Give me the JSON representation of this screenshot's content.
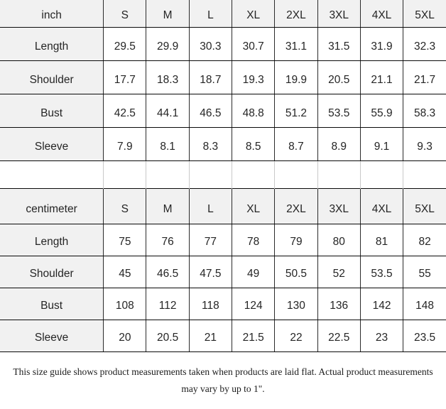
{
  "page": {
    "background": "#ffffff"
  },
  "colors": {
    "header_background": "#f1f1f1",
    "cell_background": "#ffffff",
    "vertical_grid_line": "#2b2b2b",
    "horizontal_grid_line": "#0a0a0a",
    "spacer_grid_line": "#c9c9c9",
    "text": "#252525"
  },
  "tables": [
    {
      "unit_label": "inch",
      "sizes": [
        "S",
        "M",
        "L",
        "XL",
        "2XL",
        "3XL",
        "4XL",
        "5XL"
      ],
      "rows": [
        {
          "label": "Length",
          "values": [
            "29.5",
            "29.9",
            "30.3",
            "30.7",
            "31.1",
            "31.5",
            "31.9",
            "32.3"
          ]
        },
        {
          "label": "Shoulder",
          "values": [
            "17.7",
            "18.3",
            "18.7",
            "19.3",
            "19.9",
            "20.5",
            "21.1",
            "21.7"
          ]
        },
        {
          "label": "Bust",
          "values": [
            "42.5",
            "44.1",
            "46.5",
            "48.8",
            "51.2",
            "53.5",
            "55.9",
            "58.3"
          ]
        },
        {
          "label": "Sleeve",
          "values": [
            "7.9",
            "8.1",
            "8.3",
            "8.5",
            "8.7",
            "8.9",
            "9.1",
            "9.3"
          ]
        }
      ]
    },
    {
      "unit_label": "centimeter",
      "sizes": [
        "S",
        "M",
        "L",
        "XL",
        "2XL",
        "3XL",
        "4XL",
        "5XL"
      ],
      "rows": [
        {
          "label": "Length",
          "values": [
            "75",
            "76",
            "77",
            "78",
            "79",
            "80",
            "81",
            "82"
          ]
        },
        {
          "label": "Shoulder",
          "values": [
            "45",
            "46.5",
            "47.5",
            "49",
            "50.5",
            "52",
            "53.5",
            "55"
          ]
        },
        {
          "label": "Bust",
          "values": [
            "108",
            "112",
            "118",
            "124",
            "130",
            "136",
            "142",
            "148"
          ]
        },
        {
          "label": "Sleeve",
          "values": [
            "20",
            "20.5",
            "21",
            "21.5",
            "22",
            "22.5",
            "23",
            "23.5"
          ]
        }
      ]
    }
  ],
  "footer": {
    "line1": "This size guide shows product measurements taken when products are laid flat. Actual product measurements",
    "line2": "may vary by up to 1\"."
  }
}
